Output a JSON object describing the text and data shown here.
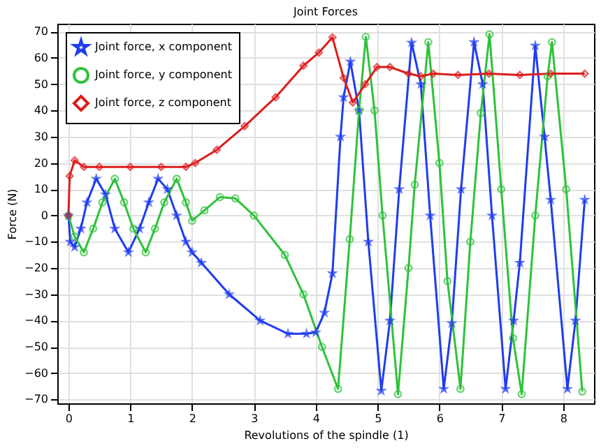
{
  "chart_data": {
    "type": "line",
    "title": "Joint Forces",
    "xlabel": "Revolutions of the spindle (1)",
    "ylabel": "Force (N)",
    "xlim": [
      -0.18,
      8.5
    ],
    "ylim": [
      -71.5,
      73
    ],
    "xticks": [
      0,
      1,
      2,
      3,
      4,
      5,
      6,
      7,
      8
    ],
    "yticks": [
      -70,
      -60,
      -50,
      -40,
      -30,
      -20,
      -10,
      0,
      10,
      20,
      30,
      40,
      50,
      60,
      70
    ],
    "grid": true,
    "legend": "top left",
    "line_style": "solid",
    "series": [
      {
        "name": "Joint force, x component",
        "color": "#1f3cf0",
        "marker": "star",
        "x": [
          0,
          0.03,
          0.1,
          0.2,
          0.3,
          0.45,
          0.6,
          0.75,
          0.97,
          1.15,
          1.3,
          1.45,
          1.6,
          1.75,
          1.9,
          2.0,
          2.15,
          2.6,
          3.1,
          3.55,
          3.85,
          4.0,
          4.14,
          4.27,
          4.4,
          4.45,
          4.56,
          4.7,
          4.85,
          5.06,
          5.2,
          5.35,
          5.55,
          5.7,
          5.85,
          6.07,
          6.2,
          6.35,
          6.56,
          6.7,
          6.85,
          7.07,
          7.2,
          7.3,
          7.55,
          7.7,
          7.8,
          8.07,
          8.2,
          8.35
        ],
        "values": [
          0,
          -10,
          -12,
          -5,
          5,
          14,
          8,
          -5,
          -14,
          -5,
          5,
          14,
          10,
          0,
          -10,
          -14,
          -18,
          -30,
          -40,
          -45,
          -45,
          -44.5,
          -37,
          -22,
          30,
          45,
          58.6,
          40,
          -10,
          -66.7,
          -40,
          10,
          65.8,
          50,
          0,
          -66,
          -41,
          10,
          66,
          50,
          0,
          -66,
          -40,
          -18,
          64.7,
          30,
          6,
          -66,
          -40,
          6
        ]
      },
      {
        "name": "Joint force, y component",
        "color": "#2ec23a",
        "marker": "circle",
        "x": [
          0,
          0.1,
          0.25,
          0.4,
          0.55,
          0.75,
          0.9,
          1.05,
          1.25,
          1.4,
          1.55,
          1.75,
          1.9,
          2.0,
          2.2,
          2.45,
          2.7,
          3.0,
          3.5,
          3.8,
          4.1,
          4.36,
          4.55,
          4.7,
          4.81,
          4.95,
          5.08,
          5.33,
          5.5,
          5.6,
          5.82,
          6.0,
          6.13,
          6.34,
          6.5,
          6.67,
          6.81,
          7.0,
          7.19,
          7.33,
          7.55,
          7.75,
          7.82,
          8.05,
          8.31
        ],
        "values": [
          0,
          -8,
          -14,
          -5,
          5,
          14,
          5,
          -5,
          -14,
          -5,
          5,
          14,
          5,
          -2,
          2,
          7,
          6.5,
          0,
          -15,
          -30,
          -50,
          -66,
          -9,
          40,
          68,
          40,
          0,
          -68,
          -20,
          11.7,
          66,
          20,
          -25,
          -66,
          -10,
          39,
          69,
          10,
          -46.7,
          -68,
          0,
          53,
          66,
          10,
          -67
        ]
      },
      {
        "name": "Joint force, z component",
        "color": "#dd1c1c",
        "marker": "diamond",
        "x": [
          0,
          0.02,
          0.1,
          0.25,
          0.5,
          1.0,
          1.5,
          1.9,
          2.05,
          2.4,
          2.85,
          3.35,
          3.8,
          4.05,
          4.27,
          4.45,
          4.6,
          4.8,
          4.99,
          5.2,
          5.5,
          5.7,
          5.9,
          6.3,
          6.8,
          7.3,
          7.8,
          8.35
        ],
        "values": [
          0,
          15,
          21,
          18.5,
          18.5,
          18.5,
          18.5,
          18.5,
          20,
          25,
          34,
          45,
          57,
          62,
          67.8,
          52.4,
          43,
          50,
          56.5,
          56.5,
          54,
          53,
          54,
          53.5,
          54,
          53.5,
          54,
          54
        ]
      }
    ]
  }
}
